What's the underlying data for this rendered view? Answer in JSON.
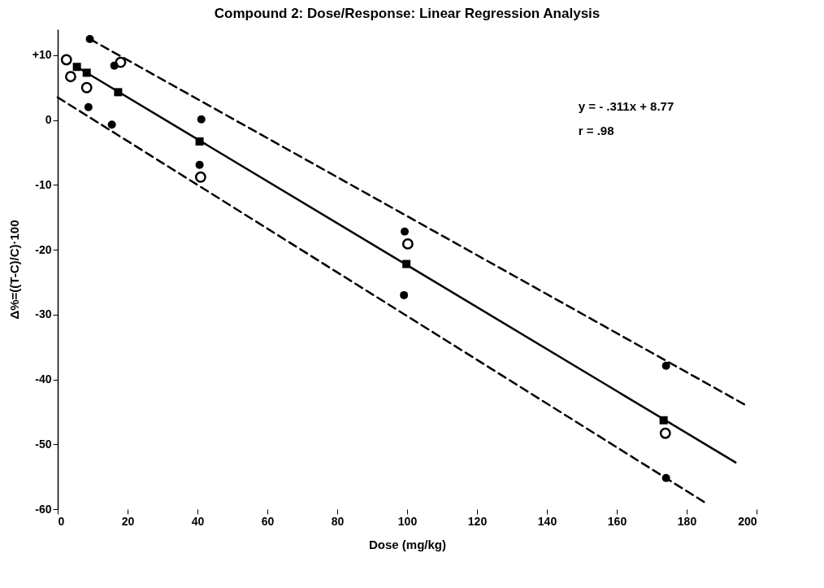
{
  "chart_data": {
    "type": "scatter",
    "title": "Compound 2: Dose/Response: Linear Regression Analysis",
    "xlabel": "Dose (mg/kg)",
    "ylabel": "Δ%=((T-C)/C)·100",
    "annotations": [
      "y = - .311x + 8.77",
      "r = .98"
    ],
    "xlim": [
      0,
      200
    ],
    "xticks": [
      0,
      20,
      40,
      60,
      80,
      100,
      120,
      140,
      160,
      180,
      200
    ],
    "ylim": [
      -60,
      14
    ],
    "yticks": [
      {
        "value": 10,
        "label": "+10"
      },
      0,
      -10,
      -20,
      -30,
      -40,
      -50,
      -60
    ],
    "grid": false,
    "series": [
      {
        "type": "line",
        "line_style": "dashed",
        "marker": "none",
        "color": "#000000",
        "x": [
          9.2,
          197
        ],
        "values": [
          12.5,
          -44
        ]
      },
      {
        "type": "line",
        "line_style": "dashed",
        "marker": "none",
        "color": "#000000",
        "x": [
          0,
          185
        ],
        "values": [
          3.5,
          -58.9
        ]
      },
      {
        "type": "line",
        "line_style": "solid",
        "marker": "none",
        "color": "#000000",
        "x": [
          5.5,
          194
        ],
        "values": [
          8.2,
          -52.8
        ]
      },
      {
        "type": "scatter",
        "marker": "square",
        "color": "#000000",
        "x": [
          5.5,
          8.3,
          17.3,
          40.6,
          99.8,
          173.4
        ],
        "values": [
          8.2,
          7.3,
          4.3,
          -3.3,
          -22.2,
          -46.3
        ]
      },
      {
        "type": "scatter",
        "marker": "circle",
        "color": "#000000",
        "x": [
          9.2,
          16.2,
          8.8,
          15.5,
          41.1,
          40.6,
          99.3,
          99.1,
          174.1,
          174.1
        ],
        "values": [
          12.5,
          8.4,
          2.0,
          -0.7,
          0.1,
          -6.9,
          -17.2,
          -27,
          -37.9,
          -55.2
        ]
      },
      {
        "type": "scatter",
        "marker": "circle",
        "color": "#000000",
        "x": [
          2.5,
          18,
          3.7,
          8.3,
          40.9,
          100.2,
          173.9
        ],
        "values": [
          9.3,
          8.9,
          6.7,
          5.0,
          -8.8,
          -19.1,
          -48.3
        ]
      }
    ]
  }
}
